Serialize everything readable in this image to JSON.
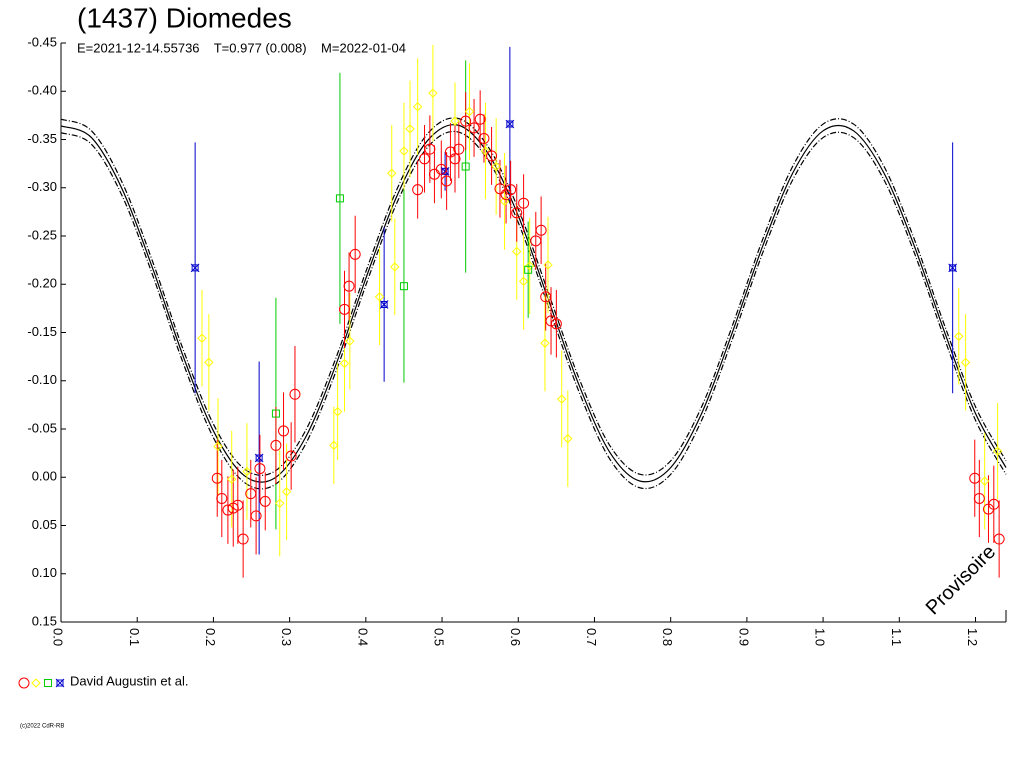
{
  "chart_data": {
    "type": "scatter",
    "title": "(1437) Diomedes",
    "subtitle": "E=2021-12-14.55736    T=0.977 (0.008)    M=2022-01-04",
    "stamp": "Provisoire",
    "footer": "(c)2022 CdR-RB",
    "xlim": [
      0,
      1.24
    ],
    "ylim": [
      0.15,
      -0.45
    ],
    "xticks": [
      {
        "value": 0,
        "label": "0.0"
      },
      0.1,
      0.2,
      0.3,
      0.4,
      0.5,
      0.6,
      0.7,
      0.8,
      0.9,
      {
        "value": 1,
        "label": "1.0"
      },
      1.1,
      1.2
    ],
    "yticks": [
      -0.45,
      {
        "value": -0.4,
        "label": "-0.40"
      },
      -0.35,
      {
        "value": -0.3,
        "label": "-0.30"
      },
      -0.25,
      {
        "value": -0.2,
        "label": "-0.20"
      },
      -0.15,
      {
        "value": -0.1,
        "label": "-0.10"
      },
      -0.05,
      {
        "value": 0,
        "label": "0.00"
      },
      0.05,
      {
        "value": 0.1,
        "label": "0.10"
      },
      0.15
    ],
    "legend": {
      "name": "David Augustin et al."
    },
    "curve_x": [
      0,
      0.04,
      0.08,
      0.12,
      0.16,
      0.2,
      0.24,
      0.28,
      0.32,
      0.36,
      0.4,
      0.44,
      0.48,
      0.52,
      0.56,
      0.6,
      0.64,
      0.68,
      0.72,
      0.76,
      0.8,
      0.84,
      0.88,
      0.92,
      0.96,
      1.0,
      1.04,
      1.08,
      1.12,
      1.16,
      1.2,
      1.24
    ],
    "curves": [
      {
        "color": "#000000",
        "dash": false,
        "values": [
          -0.364,
          -0.352,
          -0.299,
          -0.217,
          -0.126,
          -0.048,
          -0.002,
          0.001,
          -0.04,
          -0.115,
          -0.206,
          -0.29,
          -0.348,
          -0.365,
          -0.336,
          -0.271,
          -0.183,
          -0.095,
          -0.026,
          0.004,
          -0.01,
          -0.065,
          -0.148,
          -0.238,
          -0.315,
          -0.359,
          -0.359,
          -0.315,
          -0.239,
          -0.149,
          -0.066,
          -0.01
        ]
      },
      {
        "color": "#000000",
        "dash": true,
        "values": [
          -0.371,
          -0.359,
          -0.306,
          -0.224,
          -0.133,
          -0.055,
          -0.009,
          -0.006,
          -0.047,
          -0.122,
          -0.213,
          -0.297,
          -0.355,
          -0.372,
          -0.343,
          -0.278,
          -0.19,
          -0.102,
          -0.033,
          -0.003,
          -0.017,
          -0.072,
          -0.155,
          -0.245,
          -0.322,
          -0.366,
          -0.366,
          -0.322,
          -0.246,
          -0.156,
          -0.073,
          -0.017
        ]
      },
      {
        "color": "#000000",
        "dash": true,
        "values": [
          -0.357,
          -0.345,
          -0.292,
          -0.21,
          -0.119,
          -0.041,
          0.005,
          0.008,
          -0.033,
          -0.108,
          -0.199,
          -0.283,
          -0.341,
          -0.358,
          -0.329,
          -0.264,
          -0.176,
          -0.088,
          -0.019,
          0.011,
          -0.003,
          -0.058,
          -0.141,
          -0.231,
          -0.308,
          -0.352,
          -0.352,
          -0.308,
          -0.232,
          -0.142,
          -0.059,
          -0.003
        ]
      }
    ],
    "series": [
      {
        "color": "#ff0000",
        "marker": "circle",
        "x": [
          0.205,
          0.211,
          0.219,
          0.226,
          0.232,
          0.239,
          0.249,
          0.256,
          0.261,
          0.268,
          0.282,
          0.292,
          0.302,
          0.307,
          0.372,
          0.378,
          0.386,
          0.468,
          0.477,
          0.484,
          0.49,
          0.499,
          0.506,
          0.511,
          0.517,
          0.522,
          0.531,
          0.542,
          0.55,
          0.555,
          0.565,
          0.576,
          0.584,
          0.59,
          0.598,
          0.607,
          0.623,
          0.63,
          0.636,
          0.643,
          0.65,
          1.199,
          1.205,
          1.217,
          1.224,
          1.231
        ],
        "values": [
          0.001,
          0.022,
          0.034,
          0.032,
          0.029,
          0.064,
          0.017,
          0.04,
          -0.009,
          0.025,
          -0.033,
          -0.048,
          -0.022,
          -0.086,
          -0.174,
          -0.198,
          -0.231,
          -0.298,
          -0.33,
          -0.34,
          -0.314,
          -0.319,
          -0.307,
          -0.337,
          -0.33,
          -0.34,
          -0.369,
          -0.362,
          -0.371,
          -0.351,
          -0.333,
          -0.299,
          -0.293,
          -0.298,
          -0.274,
          -0.284,
          -0.245,
          -0.256,
          -0.187,
          -0.162,
          -0.159,
          0.001,
          0.022,
          0.033,
          0.028,
          0.064
        ],
        "errors": [
          0.04,
          0.04,
          0.035,
          0.04,
          0.04,
          0.04,
          0.035,
          0.04,
          0.035,
          0.03,
          0.04,
          0.04,
          0.035,
          0.05,
          0.04,
          0.035,
          0.04,
          0.03,
          0.035,
          0.035,
          0.03,
          0.03,
          0.03,
          0.03,
          0.035,
          0.03,
          0.03,
          0.03,
          0.03,
          0.025,
          0.03,
          0.03,
          0.03,
          0.03,
          0.03,
          0.03,
          0.03,
          0.035,
          0.035,
          0.035,
          0.035,
          0.04,
          0.04,
          0.035,
          0.04,
          0.04
        ]
      },
      {
        "color": "#ffff00",
        "marker": "diamond",
        "x": [
          0.185,
          0.194,
          0.206,
          0.224,
          0.244,
          0.287,
          0.296,
          0.358,
          0.363,
          0.372,
          0.379,
          0.418,
          0.438,
          0.434,
          0.45,
          0.458,
          0.468,
          0.488,
          0.517,
          0.536,
          0.557,
          0.571,
          0.582,
          0.598,
          0.607,
          0.615,
          0.639,
          0.635,
          0.657,
          0.665,
          1.178,
          1.187,
          1.212,
          1.229
        ],
        "values": [
          -0.144,
          -0.119,
          -0.032,
          0.002,
          -0.006,
          0.027,
          0.015,
          -0.033,
          -0.068,
          -0.118,
          -0.141,
          -0.187,
          -0.218,
          -0.315,
          -0.338,
          -0.361,
          -0.384,
          -0.398,
          -0.369,
          -0.379,
          -0.338,
          -0.322,
          -0.286,
          -0.234,
          -0.203,
          -0.219,
          -0.22,
          -0.139,
          -0.081,
          -0.04,
          -0.146,
          -0.119,
          0.004,
          -0.027
        ],
        "errors": [
          0.05,
          0.05,
          0.05,
          0.05,
          0.05,
          0.055,
          0.05,
          0.04,
          0.05,
          0.05,
          0.05,
          0.05,
          0.05,
          0.05,
          0.05,
          0.05,
          0.05,
          0.05,
          0.04,
          0.05,
          0.05,
          0.05,
          0.05,
          0.05,
          0.05,
          0.05,
          0.05,
          0.05,
          0.05,
          0.05,
          0.05,
          0.05,
          0.05,
          0.05
        ]
      },
      {
        "color": "#00cc00",
        "marker": "square",
        "x": [
          0.282,
          0.366,
          0.45,
          0.531,
          0.613
        ],
        "values": [
          -0.066,
          -0.289,
          -0.198,
          -0.322,
          -0.215
        ],
        "errors": [
          0.12,
          0.13,
          0.1,
          0.11,
          0.05
        ]
      },
      {
        "color": "#0000cc",
        "marker": "star",
        "x": [
          0.176,
          0.26,
          0.424,
          0.504,
          0.589,
          1.17
        ],
        "values": [
          -0.217,
          -0.02,
          -0.179,
          -0.317,
          -0.366,
          -0.217
        ],
        "errors": [
          0.13,
          0.1,
          0.08,
          0.02,
          0.08,
          0.13
        ]
      }
    ]
  }
}
